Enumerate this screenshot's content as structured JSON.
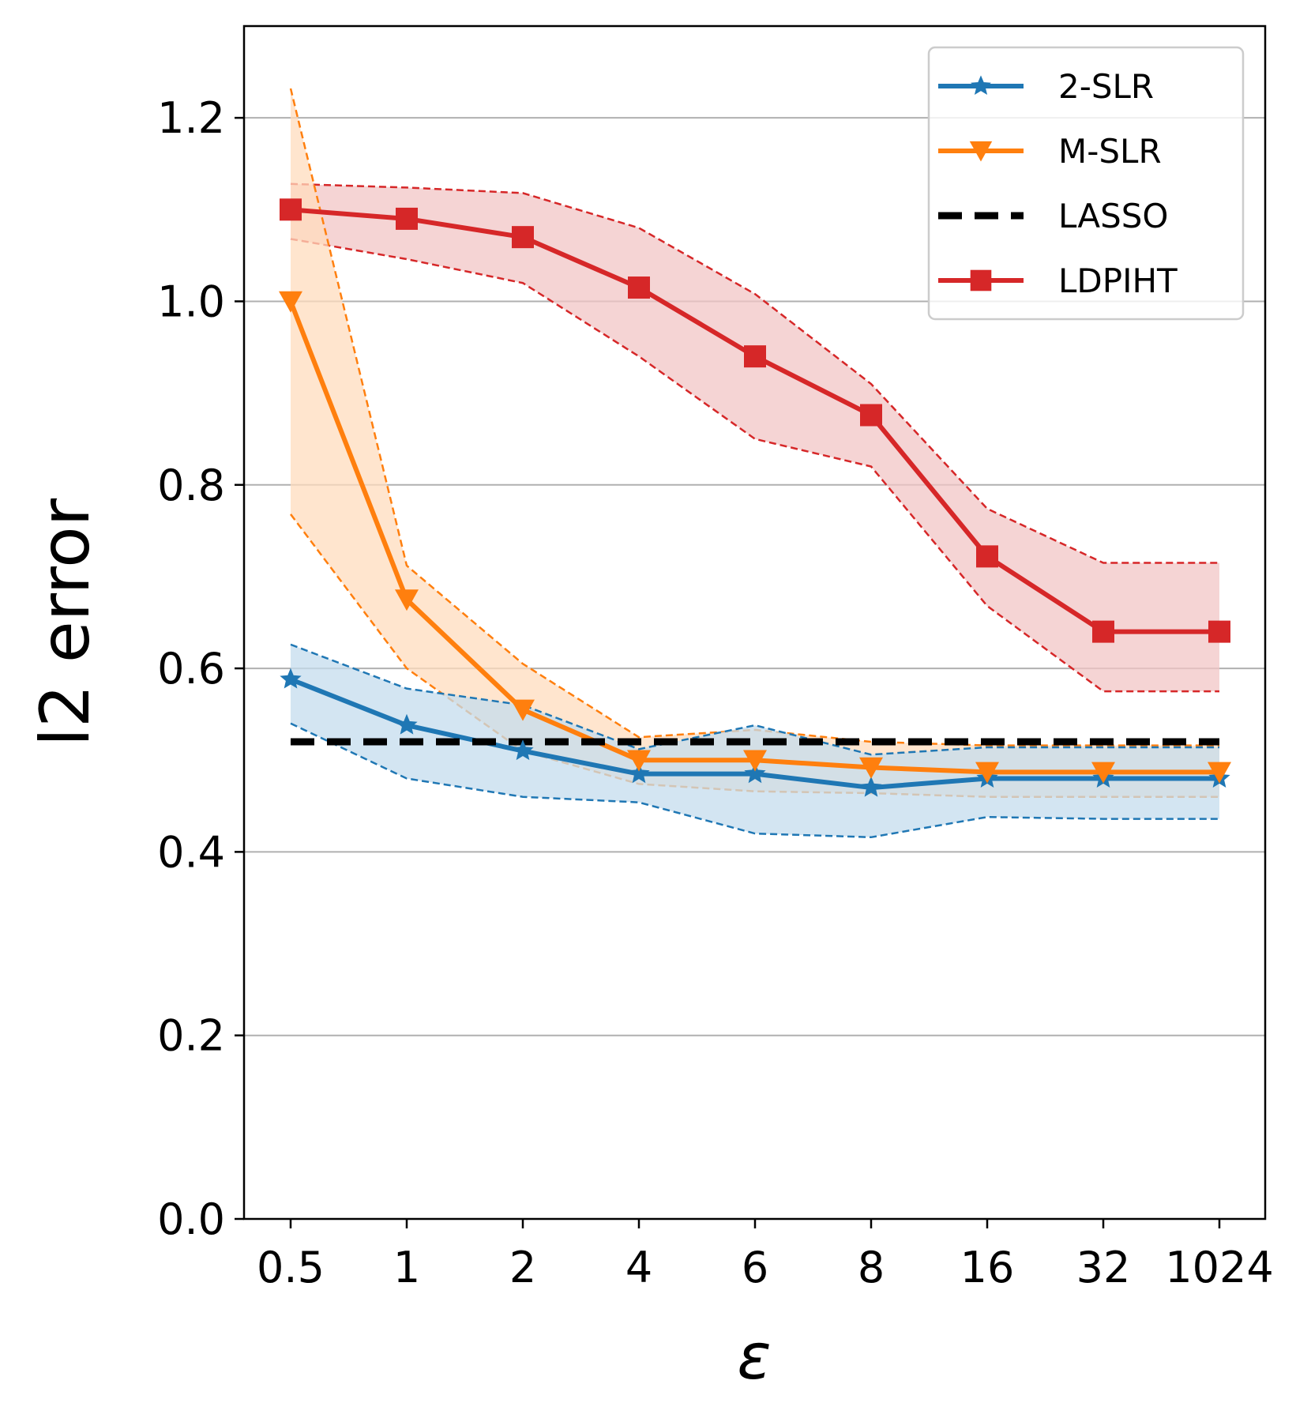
{
  "chart_data": {
    "type": "line",
    "title": "",
    "xlabel": "ε",
    "ylabel": "l2 error",
    "categories": [
      "0.5",
      "1",
      "2",
      "4",
      "6",
      "8",
      "16",
      "32",
      "1024"
    ],
    "ylim": [
      0.0,
      1.3
    ],
    "yticks": [
      "0.0",
      "0.2",
      "0.4",
      "0.6",
      "0.8",
      "1.0",
      "1.2"
    ],
    "grid": "horizontal",
    "legend_position": "top-right",
    "series": [
      {
        "name": "2-SLR",
        "color": "#1f77b4",
        "marker": "star",
        "values": [
          0.588,
          0.538,
          0.51,
          0.485,
          0.485,
          0.47,
          0.48,
          0.48,
          0.48
        ],
        "upper": [
          0.626,
          0.578,
          0.56,
          0.512,
          0.538,
          0.506,
          0.514,
          0.514,
          0.514
        ],
        "lower": [
          0.54,
          0.48,
          0.46,
          0.454,
          0.42,
          0.416,
          0.438,
          0.436,
          0.436
        ]
      },
      {
        "name": "M-SLR",
        "color": "#ff7f0e",
        "marker": "triangle-down",
        "values": [
          1.0,
          0.675,
          0.555,
          0.5,
          0.5,
          0.492,
          0.487,
          0.487,
          0.487
        ],
        "upper": [
          1.232,
          0.712,
          0.605,
          0.525,
          0.533,
          0.52,
          0.516,
          0.516,
          0.516
        ],
        "lower": [
          0.768,
          0.6,
          0.51,
          0.474,
          0.466,
          0.464,
          0.46,
          0.46,
          0.46
        ]
      },
      {
        "name": "LASSO",
        "color": "#000000",
        "marker": "none",
        "values": [
          0.52,
          0.52,
          0.52,
          0.52,
          0.52,
          0.52,
          0.52,
          0.52,
          0.52
        ]
      },
      {
        "name": "LDPIHT",
        "color": "#d62728",
        "marker": "square",
        "values": [
          1.1,
          1.09,
          1.07,
          1.015,
          0.94,
          0.876,
          0.722,
          0.64,
          0.64
        ],
        "upper": [
          1.128,
          1.124,
          1.118,
          1.08,
          1.008,
          0.91,
          0.774,
          0.715,
          0.715
        ],
        "lower": [
          1.068,
          1.046,
          1.02,
          0.94,
          0.85,
          0.82,
          0.668,
          0.575,
          0.575
        ]
      }
    ]
  }
}
